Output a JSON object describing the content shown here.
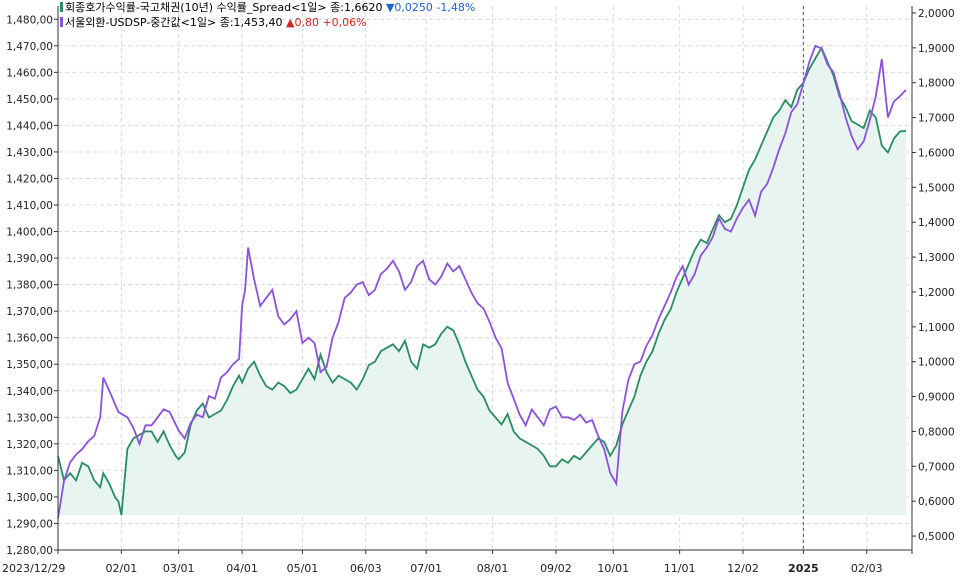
{
  "legend": {
    "spread": {
      "label": "회종호가수익률-국고채권(10년) 수익률_Spread<1일> 종:1,6620",
      "change": "▼0,0250  -1,48%",
      "color": "#2a8c63"
    },
    "usd": {
      "label": "서울외환-USDSP-중간값<1일> 종:1,453,40",
      "change": "▲0,80  +0,06%",
      "color": "#8b52d9"
    }
  },
  "colors": {
    "fill": "#e7f4ef",
    "grid": "#d9d9d9",
    "axis": "#333333",
    "crosshair": "#555555"
  },
  "chart_data": {
    "type": "line",
    "title": "",
    "grid": true,
    "legend_position": "top-left",
    "x_axis": {
      "labels": [
        "2023/12/29",
        "02/01",
        "03/01",
        "04/01",
        "05/01",
        "06/03",
        "07/01",
        "08/01",
        "09/02",
        "10/01",
        "11/01",
        "12/02",
        "2025",
        "02/03"
      ],
      "label_index": [
        0,
        21,
        40,
        61,
        81,
        102,
        122,
        144,
        165,
        184,
        206,
        227,
        247,
        268
      ],
      "label_bold": [
        false,
        false,
        false,
        false,
        false,
        false,
        false,
        false,
        false,
        false,
        false,
        false,
        true,
        false
      ],
      "crosshair_index": 247
    },
    "left_axis": {
      "series": "서울외환-USDSP-중간값",
      "range": [
        1280,
        1485
      ],
      "ticks": [
        1280,
        1290,
        1300,
        1310,
        1320,
        1330,
        1340,
        1350,
        1360,
        1370,
        1380,
        1390,
        1400,
        1410,
        1420,
        1430,
        1440,
        1450,
        1460,
        1470,
        1480
      ],
      "tick_labels": [
        "1,280,00",
        "1,290,00",
        "1,300,00",
        "1,310,00",
        "1,320,00",
        "1,330,00",
        "1,340,00",
        "1,350,00",
        "1,360,00",
        "1,370,00",
        "1,380,00",
        "1,390,00",
        "1,400,00",
        "1,410,00",
        "1,420,00",
        "1,430,00",
        "1,440,00",
        "1,450,00",
        "1,460,00",
        "1,470,00",
        "1,480,00"
      ]
    },
    "right_axis": {
      "series": "회종호가수익률-국고채권(10년) 수익률_Spread",
      "range": [
        0.46,
        2.02
      ],
      "ticks": [
        0.5,
        0.6,
        0.7,
        0.8,
        0.9,
        1.0,
        1.1,
        1.2,
        1.3,
        1.4,
        1.5,
        1.6,
        1.7,
        1.8,
        1.9,
        2.0
      ],
      "tick_labels": [
        "0,5000",
        "0,6000",
        "0,7000",
        "0,8000",
        "0,9000",
        "1,0000",
        "1,1000",
        "1,2000",
        "1,3000",
        "1,4000",
        "1,5000",
        "1,6000",
        "1,7000",
        "1,8000",
        "1,9000",
        "2,0000"
      ]
    },
    "series": [
      {
        "name": "서울외환-USDSP-중간값",
        "axis": "left",
        "color": "#8b52d9",
        "points": [
          [
            0,
            1292
          ],
          [
            2,
            1306
          ],
          [
            4,
            1313
          ],
          [
            6,
            1316
          ],
          [
            8,
            1318
          ],
          [
            10,
            1321
          ],
          [
            12,
            1323
          ],
          [
            14,
            1330
          ],
          [
            15,
            1345
          ],
          [
            17,
            1340
          ],
          [
            20,
            1332
          ],
          [
            23,
            1330
          ],
          [
            25,
            1326
          ],
          [
            27,
            1320
          ],
          [
            29,
            1327
          ],
          [
            31,
            1327
          ],
          [
            33,
            1330
          ],
          [
            35,
            1333
          ],
          [
            37,
            1332
          ],
          [
            40,
            1325
          ],
          [
            42,
            1322
          ],
          [
            44,
            1328
          ],
          [
            46,
            1331
          ],
          [
            48,
            1330
          ],
          [
            50,
            1338
          ],
          [
            52,
            1337
          ],
          [
            54,
            1345
          ],
          [
            56,
            1347
          ],
          [
            58,
            1350
          ],
          [
            60,
            1352
          ],
          [
            61,
            1372
          ],
          [
            62,
            1378
          ],
          [
            63,
            1394
          ],
          [
            65,
            1382
          ],
          [
            67,
            1372
          ],
          [
            69,
            1375
          ],
          [
            71,
            1378
          ],
          [
            73,
            1368
          ],
          [
            75,
            1365
          ],
          [
            77,
            1367
          ],
          [
            79,
            1370
          ],
          [
            81,
            1358
          ],
          [
            83,
            1360
          ],
          [
            85,
            1358
          ],
          [
            87,
            1347
          ],
          [
            89,
            1349
          ],
          [
            91,
            1360
          ],
          [
            93,
            1366
          ],
          [
            95,
            1375
          ],
          [
            97,
            1377
          ],
          [
            99,
            1380
          ],
          [
            101,
            1381
          ],
          [
            103,
            1376
          ],
          [
            105,
            1378
          ],
          [
            107,
            1384
          ],
          [
            109,
            1386
          ],
          [
            111,
            1389
          ],
          [
            113,
            1385
          ],
          [
            115,
            1378
          ],
          [
            117,
            1381
          ],
          [
            119,
            1387
          ],
          [
            121,
            1389
          ],
          [
            123,
            1382
          ],
          [
            125,
            1380
          ],
          [
            127,
            1383
          ],
          [
            129,
            1388
          ],
          [
            131,
            1385
          ],
          [
            133,
            1387
          ],
          [
            135,
            1382
          ],
          [
            137,
            1377
          ],
          [
            139,
            1373
          ],
          [
            141,
            1371
          ],
          [
            143,
            1366
          ],
          [
            145,
            1360
          ],
          [
            147,
            1356
          ],
          [
            149,
            1343
          ],
          [
            151,
            1337
          ],
          [
            153,
            1331
          ],
          [
            155,
            1327
          ],
          [
            157,
            1333
          ],
          [
            159,
            1330
          ],
          [
            161,
            1327
          ],
          [
            163,
            1333
          ],
          [
            165,
            1334
          ],
          [
            167,
            1330
          ],
          [
            169,
            1330
          ],
          [
            171,
            1329
          ],
          [
            173,
            1331
          ],
          [
            175,
            1328
          ],
          [
            177,
            1329
          ],
          [
            179,
            1323
          ],
          [
            181,
            1318
          ],
          [
            183,
            1309
          ],
          [
            185,
            1305
          ],
          [
            187,
            1332
          ],
          [
            189,
            1344
          ],
          [
            191,
            1350
          ],
          [
            193,
            1351
          ],
          [
            195,
            1357
          ],
          [
            197,
            1361
          ],
          [
            199,
            1367
          ],
          [
            201,
            1372
          ],
          [
            203,
            1377
          ],
          [
            205,
            1383
          ],
          [
            207,
            1387
          ],
          [
            209,
            1380
          ],
          [
            211,
            1384
          ],
          [
            213,
            1391
          ],
          [
            215,
            1394
          ],
          [
            217,
            1398
          ],
          [
            219,
            1405
          ],
          [
            221,
            1401
          ],
          [
            223,
            1400
          ],
          [
            225,
            1405
          ],
          [
            227,
            1409
          ],
          [
            229,
            1412
          ],
          [
            231,
            1406
          ],
          [
            233,
            1415
          ],
          [
            235,
            1418
          ],
          [
            237,
            1424
          ],
          [
            239,
            1431
          ],
          [
            241,
            1437
          ],
          [
            243,
            1445
          ],
          [
            245,
            1448
          ],
          [
            247,
            1456
          ],
          [
            249,
            1464
          ],
          [
            251,
            1470
          ],
          [
            253,
            1469
          ],
          [
            255,
            1463
          ],
          [
            257,
            1460
          ],
          [
            259,
            1452
          ],
          [
            261,
            1443
          ],
          [
            263,
            1436
          ],
          [
            265,
            1431
          ],
          [
            267,
            1434
          ],
          [
            269,
            1442
          ],
          [
            271,
            1451
          ],
          [
            273,
            1465
          ],
          [
            275,
            1443
          ],
          [
            277,
            1449
          ],
          [
            279,
            1451
          ],
          [
            281,
            1453.4
          ]
        ]
      },
      {
        "name": "회종호가수익률-국고채권(10년) 수익률_Spread",
        "axis": "right",
        "color": "#2a8c63",
        "points": [
          [
            0,
            0.73
          ],
          [
            2,
            0.66
          ],
          [
            4,
            0.68
          ],
          [
            6,
            0.66
          ],
          [
            8,
            0.71
          ],
          [
            10,
            0.7
          ],
          [
            12,
            0.66
          ],
          [
            14,
            0.64
          ],
          [
            15,
            0.68
          ],
          [
            17,
            0.65
          ],
          [
            19,
            0.61
          ],
          [
            20,
            0.6
          ],
          [
            21,
            0.56
          ],
          [
            23,
            0.75
          ],
          [
            25,
            0.78
          ],
          [
            27,
            0.79
          ],
          [
            29,
            0.8
          ],
          [
            31,
            0.8
          ],
          [
            33,
            0.77
          ],
          [
            35,
            0.8
          ],
          [
            37,
            0.76
          ],
          [
            39,
            0.73
          ],
          [
            40,
            0.72
          ],
          [
            42,
            0.74
          ],
          [
            44,
            0.82
          ],
          [
            46,
            0.86
          ],
          [
            48,
            0.88
          ],
          [
            50,
            0.84
          ],
          [
            52,
            0.85
          ],
          [
            54,
            0.86
          ],
          [
            56,
            0.89
          ],
          [
            58,
            0.93
          ],
          [
            60,
            0.96
          ],
          [
            61,
            0.94
          ],
          [
            63,
            0.98
          ],
          [
            65,
            1.0
          ],
          [
            67,
            0.96
          ],
          [
            69,
            0.93
          ],
          [
            71,
            0.92
          ],
          [
            73,
            0.94
          ],
          [
            75,
            0.93
          ],
          [
            77,
            0.91
          ],
          [
            79,
            0.92
          ],
          [
            81,
            0.95
          ],
          [
            83,
            0.98
          ],
          [
            85,
            0.95
          ],
          [
            87,
            1.02
          ],
          [
            89,
            0.97
          ],
          [
            91,
            0.94
          ],
          [
            93,
            0.96
          ],
          [
            95,
            0.95
          ],
          [
            97,
            0.94
          ],
          [
            99,
            0.92
          ],
          [
            101,
            0.95
          ],
          [
            103,
            0.99
          ],
          [
            105,
            1.0
          ],
          [
            107,
            1.03
          ],
          [
            109,
            1.04
          ],
          [
            111,
            1.05
          ],
          [
            113,
            1.03
          ],
          [
            115,
            1.06
          ],
          [
            117,
            1.0
          ],
          [
            119,
            0.98
          ],
          [
            121,
            1.05
          ],
          [
            123,
            1.04
          ],
          [
            125,
            1.05
          ],
          [
            127,
            1.08
          ],
          [
            129,
            1.1
          ],
          [
            131,
            1.09
          ],
          [
            133,
            1.05
          ],
          [
            135,
            1.0
          ],
          [
            137,
            0.96
          ],
          [
            139,
            0.92
          ],
          [
            141,
            0.9
          ],
          [
            143,
            0.86
          ],
          [
            145,
            0.84
          ],
          [
            147,
            0.82
          ],
          [
            149,
            0.85
          ],
          [
            151,
            0.8
          ],
          [
            153,
            0.78
          ],
          [
            155,
            0.77
          ],
          [
            157,
            0.76
          ],
          [
            159,
            0.75
          ],
          [
            161,
            0.73
          ],
          [
            163,
            0.7
          ],
          [
            165,
            0.7
          ],
          [
            167,
            0.72
          ],
          [
            169,
            0.71
          ],
          [
            171,
            0.73
          ],
          [
            173,
            0.72
          ],
          [
            175,
            0.74
          ],
          [
            177,
            0.76
          ],
          [
            179,
            0.78
          ],
          [
            181,
            0.77
          ],
          [
            183,
            0.73
          ],
          [
            185,
            0.76
          ],
          [
            187,
            0.82
          ],
          [
            189,
            0.86
          ],
          [
            191,
            0.9
          ],
          [
            193,
            0.96
          ],
          [
            195,
            1.0
          ],
          [
            197,
            1.03
          ],
          [
            199,
            1.08
          ],
          [
            201,
            1.12
          ],
          [
            203,
            1.15
          ],
          [
            205,
            1.2
          ],
          [
            207,
            1.24
          ],
          [
            209,
            1.28
          ],
          [
            211,
            1.32
          ],
          [
            213,
            1.35
          ],
          [
            215,
            1.34
          ],
          [
            217,
            1.38
          ],
          [
            219,
            1.42
          ],
          [
            221,
            1.4
          ],
          [
            223,
            1.41
          ],
          [
            225,
            1.45
          ],
          [
            227,
            1.5
          ],
          [
            229,
            1.55
          ],
          [
            231,
            1.58
          ],
          [
            233,
            1.62
          ],
          [
            235,
            1.66
          ],
          [
            237,
            1.7
          ],
          [
            239,
            1.72
          ],
          [
            241,
            1.75
          ],
          [
            243,
            1.73
          ],
          [
            245,
            1.78
          ],
          [
            247,
            1.8
          ],
          [
            249,
            1.84
          ],
          [
            251,
            1.87
          ],
          [
            253,
            1.9
          ],
          [
            255,
            1.86
          ],
          [
            257,
            1.82
          ],
          [
            259,
            1.76
          ],
          [
            261,
            1.73
          ],
          [
            263,
            1.69
          ],
          [
            265,
            1.68
          ],
          [
            267,
            1.67
          ],
          [
            269,
            1.72
          ],
          [
            271,
            1.7
          ],
          [
            273,
            1.62
          ],
          [
            275,
            1.6
          ],
          [
            277,
            1.64
          ],
          [
            279,
            1.66
          ],
          [
            281,
            1.662
          ]
        ]
      }
    ]
  }
}
